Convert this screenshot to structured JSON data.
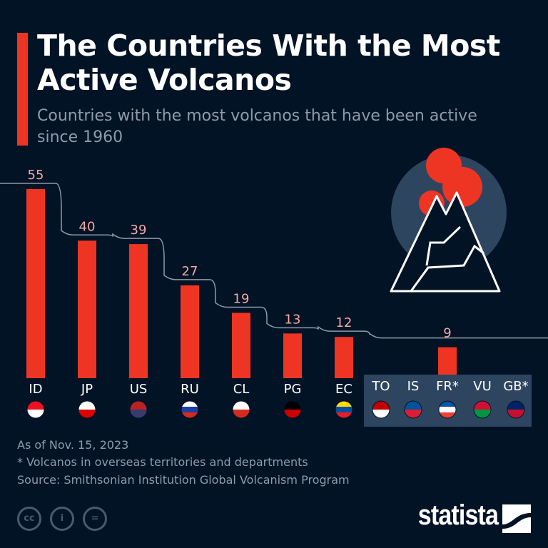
{
  "header": {
    "title": "The Countries With the Most Active Volcanos",
    "subtitle": "Countries with the most volcanos that have been active since 1960"
  },
  "chart_data": {
    "type": "bar",
    "categories": [
      "ID",
      "JP",
      "US",
      "RU",
      "CL",
      "PG",
      "EC"
    ],
    "values": [
      55,
      40,
      39,
      27,
      19,
      13,
      12
    ],
    "group": {
      "categories": [
        "TO",
        "IS",
        "FR*",
        "VU",
        "GB*"
      ],
      "value": 9
    },
    "ylim": [
      0,
      55
    ],
    "grid": false,
    "bar_color": "#ee3524",
    "label_color": "#f4a9a3",
    "flags": [
      "indonesia",
      "japan",
      "united-states",
      "russia",
      "chile",
      "papua-new-guinea",
      "ecuador",
      "tonga",
      "iceland",
      "france",
      "vanuatu",
      "united-kingdom"
    ]
  },
  "footer": {
    "note1": "As of Nov. 15, 2023",
    "note2": "* Volcanos in overseas territories and departments",
    "source": "Source: Smithsonian Institution Global Volcanism Program",
    "logo": "statista",
    "cc": [
      "cc",
      "i",
      "="
    ]
  }
}
